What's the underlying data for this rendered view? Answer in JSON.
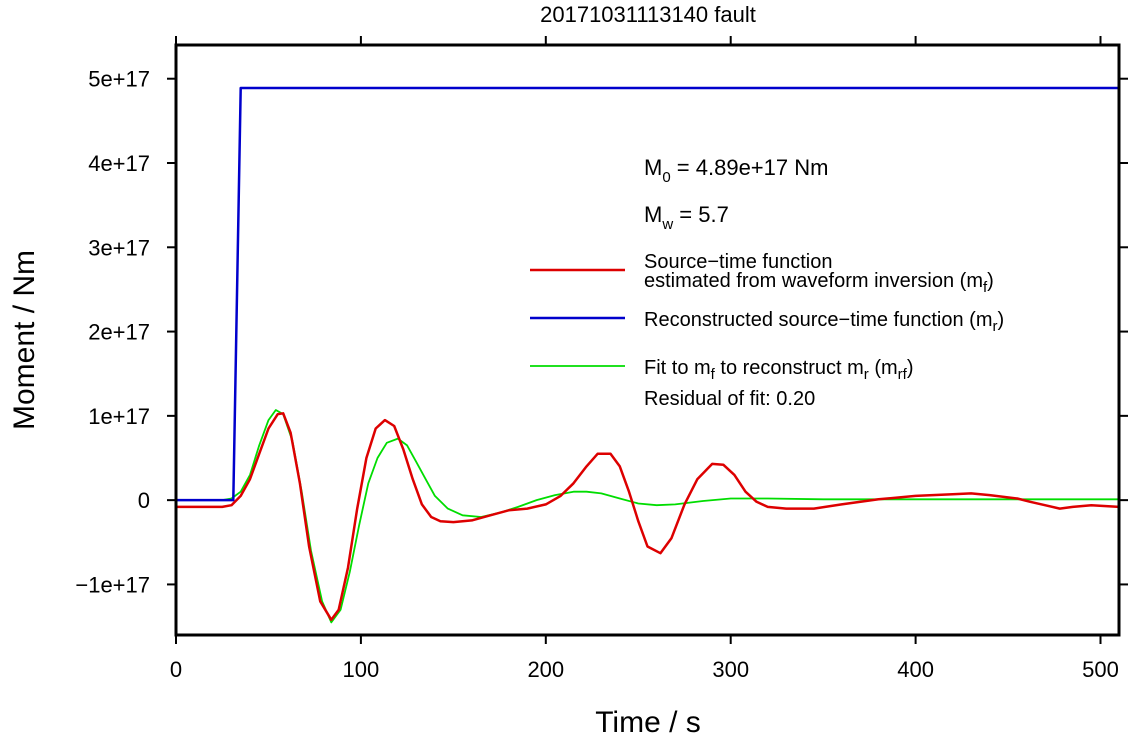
{
  "chart_data": {
    "type": "line",
    "title": "20171031113140 fault",
    "xlabel": "Time / s",
    "ylabel": "Moment / Nm",
    "xlim": [
      0,
      510
    ],
    "ylim": [
      -1.6e+17,
      5.4e+17
    ],
    "grid": false,
    "legend_position": "right",
    "x_ticks": [
      0,
      100,
      200,
      300,
      400,
      500
    ],
    "x_tick_labels": [
      "0",
      "100",
      "200",
      "300",
      "400",
      "500"
    ],
    "y_ticks": [
      -1e+17,
      0,
      1e+17,
      2e+17,
      3e+17,
      4e+17,
      5e+17
    ],
    "y_tick_labels": [
      "−1e+17",
      "0",
      "1e+17",
      "2e+17",
      "3e+17",
      "4e+17",
      "5e+17"
    ],
    "annotations": {
      "m0": {
        "main": "M",
        "sub": "0",
        "rest": " = 4.89e+17 Nm"
      },
      "mw": {
        "main": "M",
        "sub": "w",
        "rest": " = 5.7"
      },
      "residual": "Residual of fit: 0.20"
    },
    "series": [
      {
        "name": "Source−time function estimated from waveform inversion (mf)",
        "color": "#dd0000",
        "x": [
          0,
          25,
          30,
          35,
          40,
          45,
          50,
          55,
          58,
          62,
          67,
          72,
          78,
          84,
          88,
          93,
          98,
          103,
          108,
          113,
          118,
          123,
          128,
          133,
          138,
          143,
          150,
          160,
          170,
          180,
          190,
          200,
          208,
          215,
          222,
          228,
          235,
          240,
          245,
          250,
          255,
          262,
          268,
          275,
          282,
          290,
          296,
          302,
          308,
          314,
          320,
          330,
          345,
          360,
          380,
          400,
          420,
          430,
          440,
          455,
          462,
          470,
          478,
          485,
          495,
          510
        ],
        "y": [
          -8000000000000000.0,
          -8000000000000000.0,
          -6000000000000000.0,
          5000000000000000.0,
          2.5e+16,
          5.5e+16,
          8.5e+16,
          1.02e+17,
          1.03e+17,
          8e+16,
          2e+16,
          -5.5e+16,
          -1.2e+17,
          -1.42e+17,
          -1.3e+17,
          -8e+16,
          -1e+16,
          5e+16,
          8.5e+16,
          9.5e+16,
          8.8e+16,
          6e+16,
          2.5e+16,
          -5000000000000000.0,
          -2e+16,
          -2.5e+16,
          -2.6e+16,
          -2.4e+16,
          -1.8e+16,
          -1.2e+16,
          -1e+16,
          -5000000000000000.0,
          5000000000000000.0,
          2e+16,
          4e+16,
          5.5e+16,
          5.5e+16,
          4e+16,
          1e+16,
          -2.5e+16,
          -5.5e+16,
          -6.3e+16,
          -4.5e+16,
          -5000000000000000.0,
          2.5e+16,
          4.3e+16,
          4.2e+16,
          3e+16,
          1e+16,
          -2000000000000000.0,
          -8000000000000000.0,
          -1e+16,
          -1e+16,
          -5000000000000000.0,
          1000000000000000.0,
          5000000000000000.0,
          7000000000000000.0,
          8000000000000000.0,
          6000000000000000.0,
          2000000000000000.0,
          -2000000000000000.0,
          -6000000000000000.0,
          -1e+16,
          -8000000000000000.0,
          -6000000000000000.0,
          -8000000000000000.0
        ]
      },
      {
        "name": "Reconstructed source−time function (mr)",
        "color": "#0000cc",
        "x": [
          0,
          31,
          35,
          510
        ],
        "y": [
          0,
          0,
          4.89e+17,
          4.89e+17
        ]
      },
      {
        "name": "Fit to mf to reconstruct mr (mrf)",
        "color": "#00dd00",
        "x": [
          0,
          25,
          30,
          35,
          40,
          45,
          50,
          54,
          58,
          63,
          68,
          73,
          79,
          84,
          89,
          94,
          99,
          104,
          109,
          114,
          120,
          125,
          130,
          135,
          140,
          147,
          155,
          165,
          175,
          185,
          195,
          205,
          215,
          222,
          230,
          240,
          250,
          260,
          270,
          285,
          300,
          320,
          350,
          400,
          450,
          510
        ],
        "y": [
          0,
          0,
          2000000000000000.0,
          1e+16,
          3e+16,
          6.5e+16,
          9.5e+16,
          1.07e+17,
          1.02e+17,
          7e+16,
          1e+16,
          -6e+16,
          -1.2e+17,
          -1.45e+17,
          -1.3e+17,
          -8.5e+16,
          -3e+16,
          2e+16,
          5e+16,
          6.8e+16,
          7.3e+16,
          6.5e+16,
          4.5e+16,
          2.5e+16,
          5000000000000000.0,
          -1e+16,
          -1.8e+16,
          -2e+16,
          -1.5e+16,
          -8000000000000000.0,
          0,
          6000000000000000.0,
          1e+16,
          1e+16,
          8000000000000000.0,
          2000000000000000.0,
          -4000000000000000.0,
          -6000000000000000.0,
          -5000000000000000.0,
          -1000000000000000.0,
          2000000000000000.0,
          2000000000000000.0,
          1000000000000000.0,
          1000000000000000.0,
          1000000000000000.0,
          1000000000000000.0
        ]
      }
    ],
    "legend": [
      {
        "line1": "Source−time function",
        "line2": "estimated from waveform inversion (m",
        "sub": "f",
        "tail": ")",
        "color": "#dd0000"
      },
      {
        "line1": "Reconstructed source−time function (m",
        "sub": "r",
        "tail": ")",
        "color": "#0000cc"
      },
      {
        "line1": "Fit to m",
        "sub1": "f",
        "mid": " to reconstruct m",
        "sub2": "r",
        "mid2": " (m",
        "sub3": "rf",
        "tail": ")",
        "color": "#00dd00"
      }
    ]
  }
}
